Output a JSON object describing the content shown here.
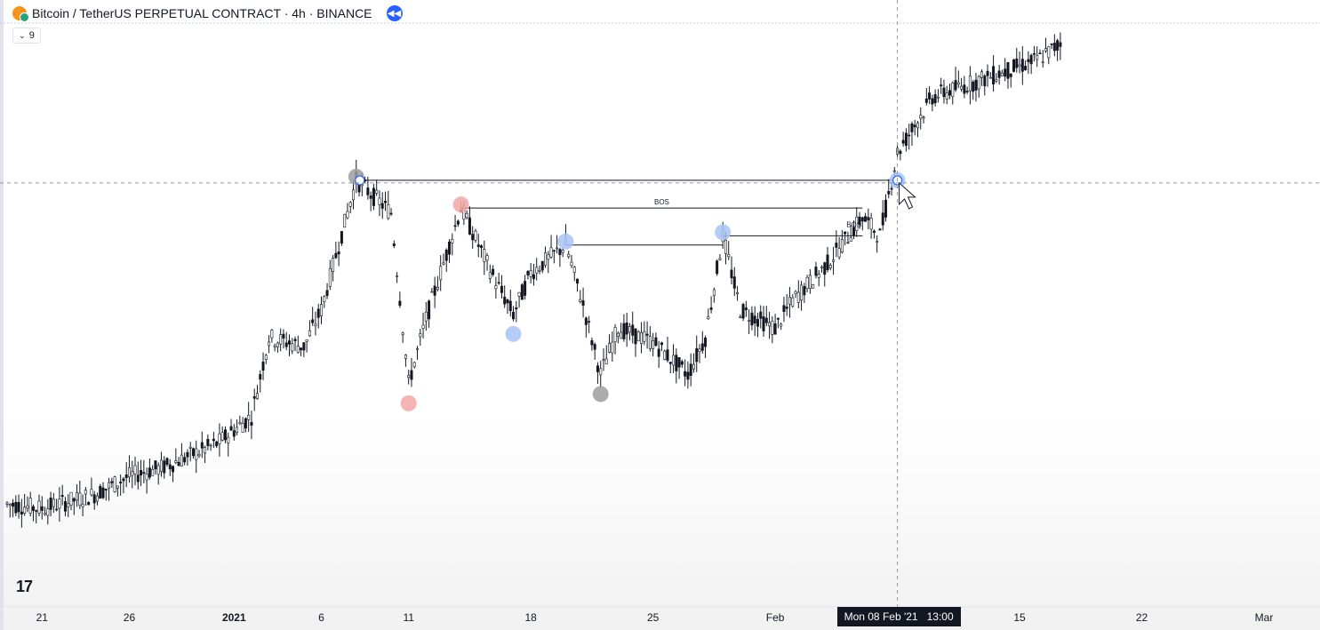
{
  "header": {
    "symbol": "Bitcoin / TetherUS PERPETUAL CONTRACT · 4h · BINANCE",
    "indicator_value": "9"
  },
  "crosshair_time_label": "Mon 08 Feb '21   13:00",
  "colors": {
    "candle": "#131722",
    "bos_line": "#131722",
    "marker_grey": "#9e9e9e",
    "marker_red": "#f4a6a6",
    "marker_blue": "#a8c4f5",
    "crosshair": "#9598a1"
  },
  "chart_data": {
    "type": "candlestick",
    "title": "",
    "timeframe": "4h",
    "x_ticks": [
      "21",
      "26",
      "2021",
      "6",
      "11",
      "18",
      "25",
      "Feb",
      "8",
      "15",
      "22",
      "Mar"
    ],
    "annotations": [
      {
        "type": "label",
        "text": "BOS",
        "between": [
          "2021-01-14",
          "2021-02-06"
        ]
      },
      {
        "type": "label",
        "text": "BOS",
        "between": [
          "2021-01-29",
          "2021-02-05"
        ]
      }
    ],
    "swing_markers": [
      {
        "date": "2021-01-08",
        "kind": "high",
        "color": "grey"
      },
      {
        "date": "2021-01-11",
        "kind": "low",
        "color": "red"
      },
      {
        "date": "2021-01-14",
        "kind": "high",
        "color": "red"
      },
      {
        "date": "2021-01-17",
        "kind": "low",
        "color": "blue"
      },
      {
        "date": "2021-01-20",
        "kind": "high",
        "color": "blue"
      },
      {
        "date": "2021-01-22",
        "kind": "low",
        "color": "grey"
      },
      {
        "date": "2021-01-29",
        "kind": "high",
        "color": "blue"
      },
      {
        "date": "2021-02-08",
        "kind": "break",
        "color": "blue"
      }
    ],
    "price_path": [
      {
        "date": "2020-12-19",
        "value": 22
      },
      {
        "date": "2020-12-21",
        "value": 21
      },
      {
        "date": "2020-12-24",
        "value": 24
      },
      {
        "date": "2020-12-26",
        "value": 28
      },
      {
        "date": "2020-12-28",
        "value": 30
      },
      {
        "date": "2020-12-31",
        "value": 35
      },
      {
        "date": "2021-01-02",
        "value": 41
      },
      {
        "date": "2021-01-03",
        "value": 58
      },
      {
        "date": "2021-01-05",
        "value": 56
      },
      {
        "date": "2021-01-06",
        "value": 64
      },
      {
        "date": "2021-01-08",
        "value": 92
      },
      {
        "date": "2021-01-10",
        "value": 85
      },
      {
        "date": "2021-01-11",
        "value": 48
      },
      {
        "date": "2021-01-12",
        "value": 62
      },
      {
        "date": "2021-01-13",
        "value": 74
      },
      {
        "date": "2021-01-14",
        "value": 86
      },
      {
        "date": "2021-01-16",
        "value": 70
      },
      {
        "date": "2021-01-17",
        "value": 63
      },
      {
        "date": "2021-01-18",
        "value": 72
      },
      {
        "date": "2021-01-20",
        "value": 78
      },
      {
        "date": "2021-01-21",
        "value": 65
      },
      {
        "date": "2021-01-22",
        "value": 50
      },
      {
        "date": "2021-01-23",
        "value": 60
      },
      {
        "date": "2021-01-25",
        "value": 57
      },
      {
        "date": "2021-01-27",
        "value": 50
      },
      {
        "date": "2021-01-28",
        "value": 58
      },
      {
        "date": "2021-01-29",
        "value": 80
      },
      {
        "date": "2021-01-30",
        "value": 64
      },
      {
        "date": "2021-02-01",
        "value": 60
      },
      {
        "date": "2021-02-02",
        "value": 66
      },
      {
        "date": "2021-02-04",
        "value": 74
      },
      {
        "date": "2021-02-06",
        "value": 84
      },
      {
        "date": "2021-02-07",
        "value": 80
      },
      {
        "date": "2021-02-08",
        "value": 98
      },
      {
        "date": "2021-02-10",
        "value": 110
      },
      {
        "date": "2021-02-13",
        "value": 114
      },
      {
        "date": "2021-02-16",
        "value": 118
      },
      {
        "date": "2021-02-19",
        "value": 126
      },
      {
        "date": "2021-02-21",
        "value": 130
      },
      {
        "date": "2021-02-22",
        "value": 104
      }
    ],
    "ylim": [
      8,
      131
    ]
  }
}
